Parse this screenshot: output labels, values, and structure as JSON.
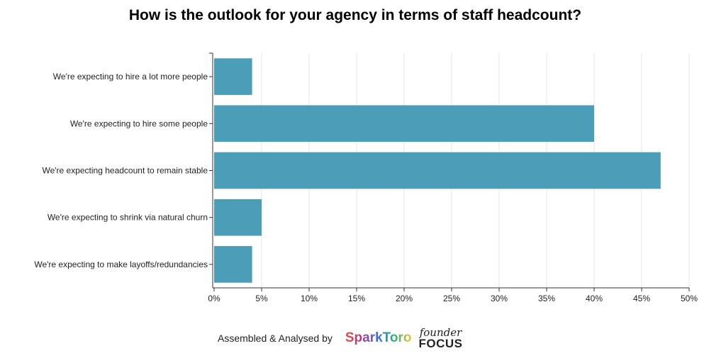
{
  "chart_data": {
    "type": "bar",
    "orientation": "horizontal",
    "title": "How is the outlook for your agency in terms of staff headcount?",
    "categories": [
      "We're expecting to hire a lot more people",
      "We're expecting to hire some people",
      "We're expecting headcount to remain stable",
      "We're expecting to shrink via natural churn",
      "We're expecting to make layoffs/redundancies"
    ],
    "values": [
      4,
      40,
      47,
      5,
      4
    ],
    "xlim": [
      0,
      50
    ],
    "xticks": [
      0,
      5,
      10,
      15,
      20,
      25,
      30,
      35,
      40,
      45,
      50
    ],
    "xtick_labels": [
      "0%",
      "5%",
      "10%",
      "15%",
      "20%",
      "25%",
      "30%",
      "35%",
      "40%",
      "45%",
      "50%"
    ],
    "xlabel": "",
    "ylabel": "",
    "grid": "vertical",
    "bar_color": "#4b9db8"
  },
  "footer": {
    "credit": "Assembled & Analysed by",
    "logo1": "SparkToro",
    "logo2_top": "founder",
    "logo2_bottom": "FOCUS"
  }
}
